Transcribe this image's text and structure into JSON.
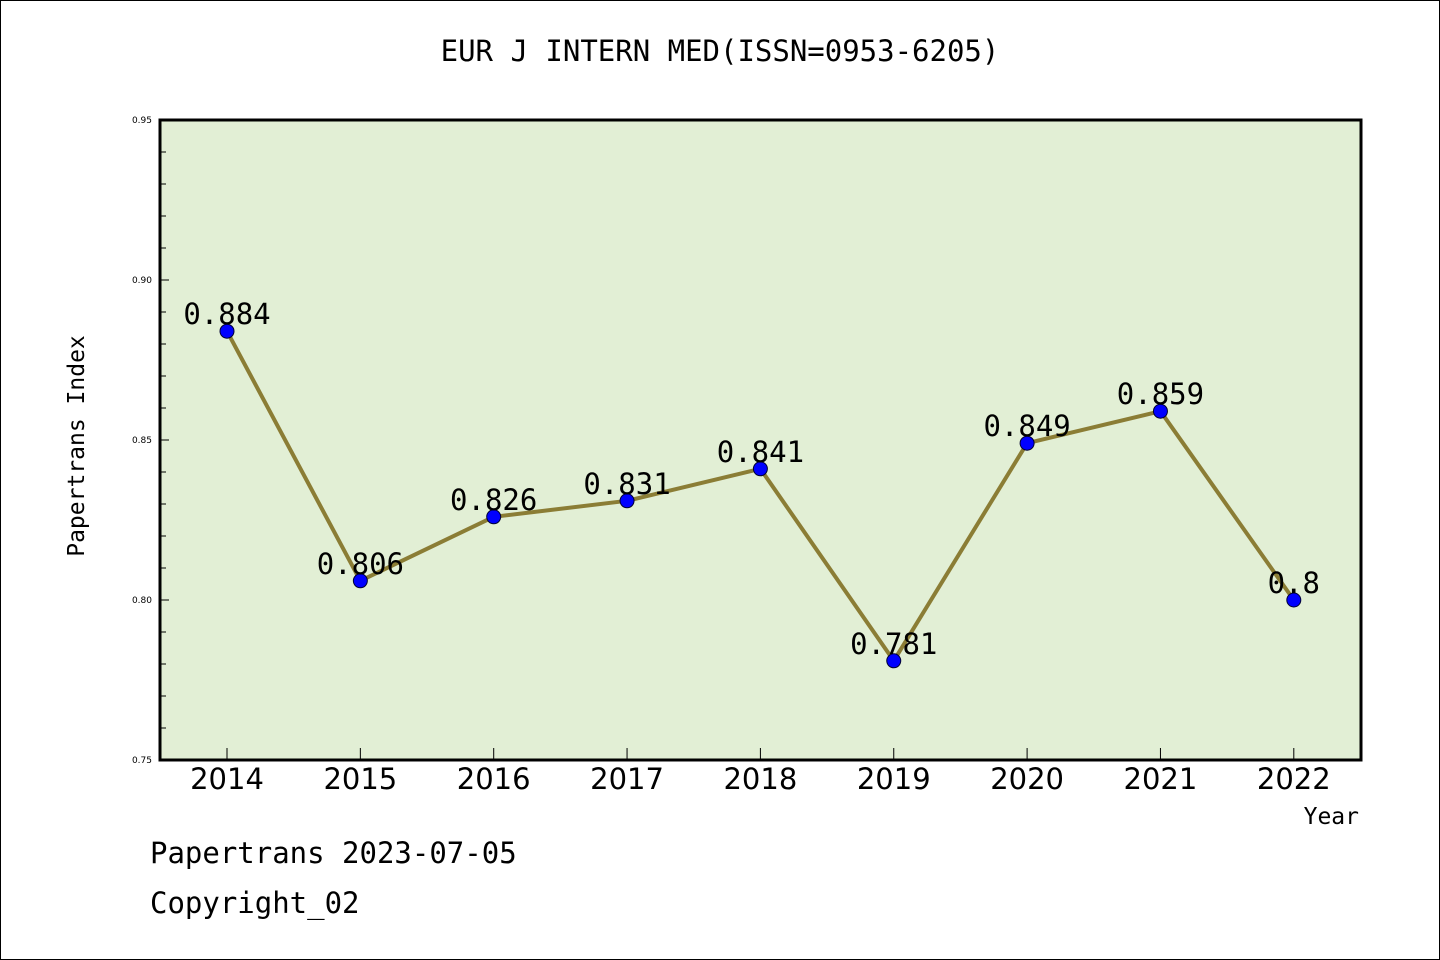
{
  "chart_data": {
    "type": "line",
    "title": "EUR J INTERN MED(ISSN=0953-6205)",
    "xlabel": "Year",
    "ylabel": "Papertrans Index",
    "categories": [
      "2014",
      "2015",
      "2016",
      "2017",
      "2018",
      "2019",
      "2020",
      "2021",
      "2022"
    ],
    "values": [
      0.884,
      0.806,
      0.826,
      0.831,
      0.841,
      0.781,
      0.849,
      0.859,
      0.8
    ],
    "data_labels": [
      "0.884",
      "0.806",
      "0.826",
      "0.831",
      "0.841",
      "0.781",
      "0.849",
      "0.859",
      "0.8"
    ],
    "ylim": [
      0.75,
      0.95
    ],
    "y_ticks": [
      "0.75",
      "0.80",
      "0.85",
      "0.90",
      "0.95"
    ],
    "grid": false,
    "legend": "none",
    "colors": {
      "plot_background": "#e2efd5",
      "line": "#8b7d35",
      "marker": "#0000ff"
    }
  },
  "footer": {
    "line1": "Papertrans 2023-07-05",
    "line2": "Copyright_02"
  }
}
